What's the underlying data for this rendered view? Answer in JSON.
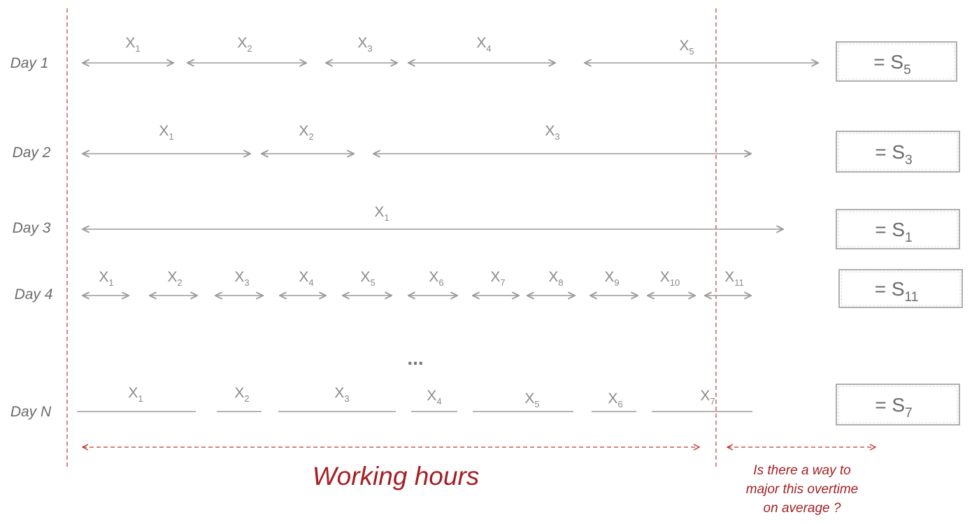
{
  "rows": [
    {
      "label": "Day 1",
      "style": "arrow",
      "segments": [
        {
          "v": "X",
          "sub": "1"
        },
        {
          "v": "X",
          "sub": "2"
        },
        {
          "v": "X",
          "sub": "3"
        },
        {
          "v": "X",
          "sub": "4"
        },
        {
          "v": "X",
          "sub": "5"
        }
      ],
      "sum": {
        "prefix": "= S",
        "sub": "5"
      }
    },
    {
      "label": "Day 2",
      "style": "arrow",
      "segments": [
        {
          "v": "X",
          "sub": "1"
        },
        {
          "v": "X",
          "sub": "2"
        },
        {
          "v": "X",
          "sub": "3"
        }
      ],
      "sum": {
        "prefix": "= S",
        "sub": "3"
      }
    },
    {
      "label": "Day 3",
      "style": "arrow",
      "segments": [
        {
          "v": "X",
          "sub": "1"
        }
      ],
      "sum": {
        "prefix": "= S",
        "sub": "1"
      }
    },
    {
      "label": "Day 4",
      "style": "arrow",
      "segments": [
        {
          "v": "X",
          "sub": "1"
        },
        {
          "v": "X",
          "sub": "2"
        },
        {
          "v": "X",
          "sub": "3"
        },
        {
          "v": "X",
          "sub": "4"
        },
        {
          "v": "X",
          "sub": "5"
        },
        {
          "v": "X",
          "sub": "6"
        },
        {
          "v": "X",
          "sub": "7"
        },
        {
          "v": "X",
          "sub": "8"
        },
        {
          "v": "X",
          "sub": "9"
        },
        {
          "v": "X",
          "sub": "10"
        },
        {
          "v": "X",
          "sub": "11"
        }
      ],
      "sum": {
        "prefix": "= S",
        "sub": "11"
      }
    },
    {
      "label": "Day N",
      "style": "line",
      "segments": [
        {
          "v": "X",
          "sub": "1"
        },
        {
          "v": "X",
          "sub": "2"
        },
        {
          "v": "X",
          "sub": "3"
        },
        {
          "v": "X",
          "sub": "4"
        },
        {
          "v": "X",
          "sub": "5"
        },
        {
          "v": "X",
          "sub": "6"
        },
        {
          "v": "X",
          "sub": "7"
        }
      ],
      "sum": {
        "prefix": "= S",
        "sub": "7"
      }
    }
  ],
  "ellipsis": "...",
  "working_hours": "Working hours",
  "overtime_question": [
    "Is there a way to",
    "major this overtime",
    "on average ?"
  ],
  "colors": {
    "arrow": "#9a9a9a",
    "accent": "#a31f24",
    "box_border": "#9a9a9a",
    "day_text": "#6b6b6b"
  }
}
